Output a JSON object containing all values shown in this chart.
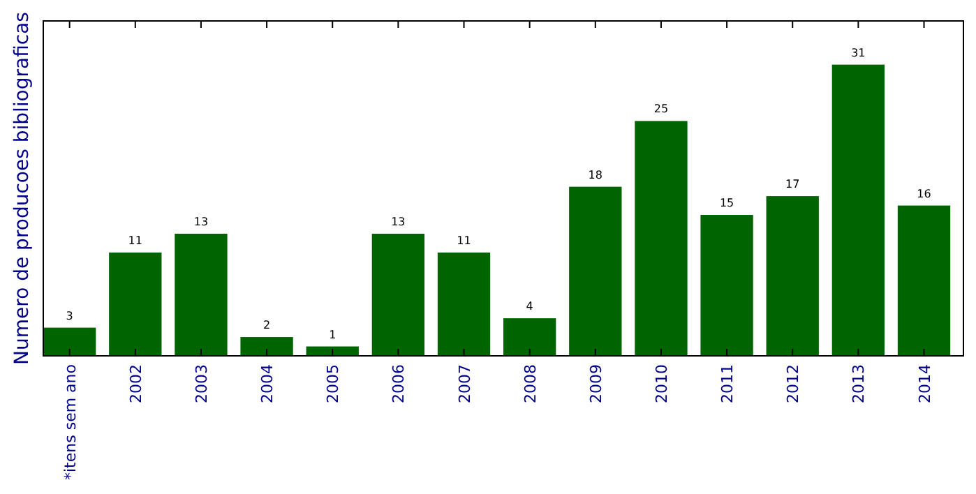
{
  "chart_data": {
    "type": "bar",
    "ylabel": "Numero de producoes bibliograficas",
    "categories": [
      "*itens sem ano",
      "2002",
      "2003",
      "2004",
      "2005",
      "2006",
      "2007",
      "2008",
      "2009",
      "2010",
      "2011",
      "2012",
      "2013",
      "2014"
    ],
    "values": [
      3,
      11,
      13,
      2,
      1,
      13,
      11,
      4,
      18,
      25,
      15,
      17,
      31,
      16
    ],
    "color": "#006400",
    "data_labels": true
  }
}
